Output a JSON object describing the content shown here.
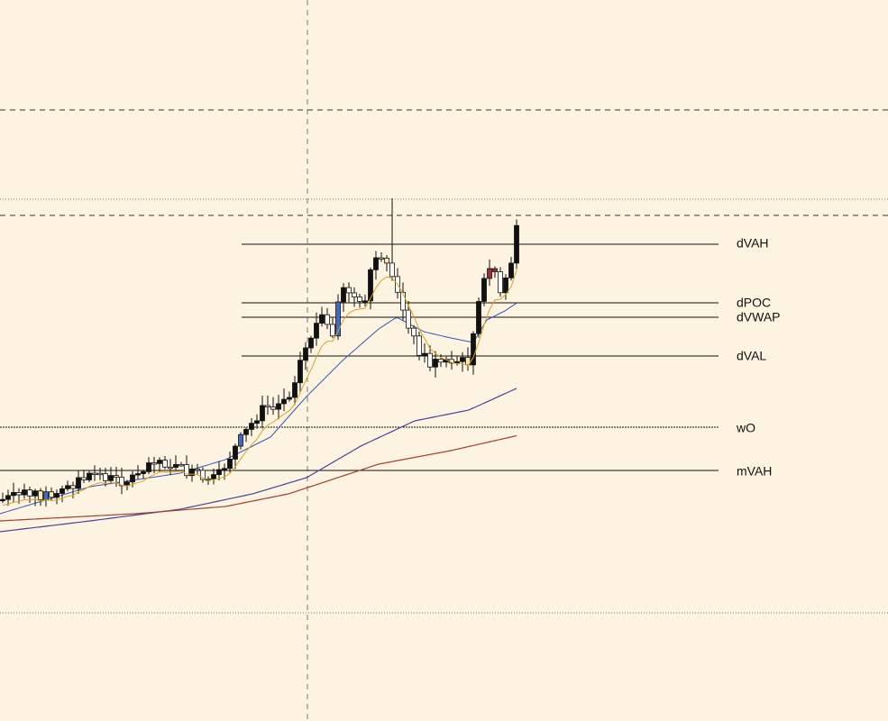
{
  "levels": [
    {
      "label": "dVAH"
    },
    {
      "label": "dPOC"
    },
    {
      "label": "dVWAP"
    },
    {
      "label": "dVAL"
    },
    {
      "label": "wO"
    },
    {
      "label": "mVAH"
    }
  ]
}
